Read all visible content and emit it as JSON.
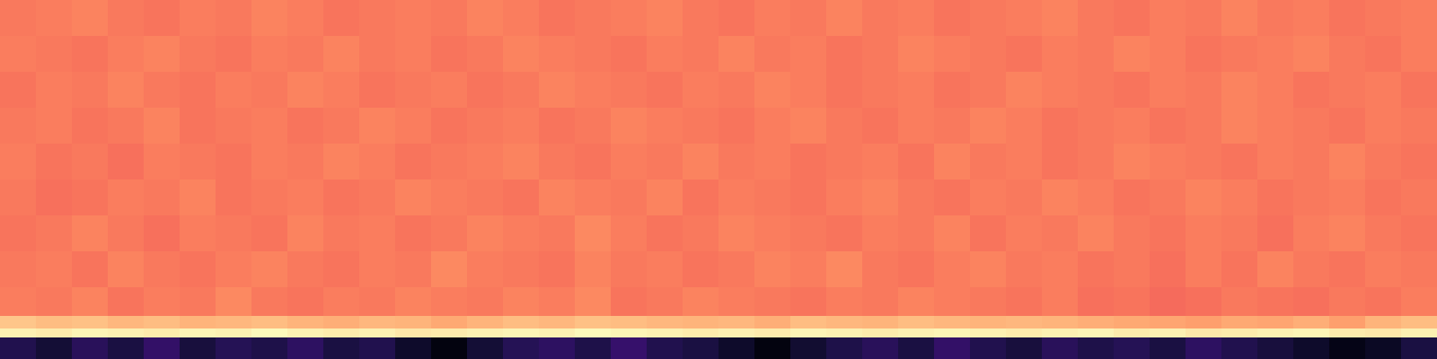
{
  "chart_data": {
    "type": "heatmap",
    "color": "magma",
    "tick_labels": false,
    "xlim": [
      0,
      40
    ],
    "ylim": [
      0,
      400
    ],
    "zlim": [
      0,
      1
    ],
    "x_edges": [
      0,
      1,
      2,
      3,
      4,
      5,
      6,
      7,
      8,
      9,
      10,
      11,
      12,
      13,
      14,
      15,
      16,
      17,
      18,
      19,
      20,
      21,
      22,
      23,
      24,
      25,
      26,
      27,
      28,
      29,
      30,
      31,
      32,
      33,
      34,
      35,
      36,
      37,
      38,
      39,
      40
    ],
    "y_edges": [
      0,
      24,
      34,
      48,
      80,
      120,
      160,
      200,
      240,
      280,
      320,
      360,
      400
    ],
    "z": [
      [
        0.14,
        0.1,
        0.16,
        0.12,
        0.18,
        0.11,
        0.15,
        0.13,
        0.17,
        0.12,
        0.14,
        0.08,
        0.03,
        0.1,
        0.15,
        0.17,
        0.13,
        0.19,
        0.14,
        0.12,
        0.08,
        0.03,
        0.09,
        0.13,
        0.16,
        0.12,
        0.18,
        0.14,
        0.11,
        0.16,
        0.13,
        0.15,
        0.12,
        0.17,
        0.14,
        0.11,
        0.08,
        0.04,
        0.07,
        0.12
      ],
      [
        0.97,
        0.96,
        0.98,
        0.97,
        0.96,
        0.98,
        0.97,
        0.99,
        0.97,
        0.96,
        0.97,
        0.95,
        0.96,
        0.97,
        0.98,
        0.97,
        0.99,
        0.98,
        0.97,
        0.96,
        0.97,
        0.96,
        0.98,
        0.97,
        0.96,
        0.97,
        0.98,
        0.97,
        0.96,
        0.97,
        0.98,
        0.96,
        0.97,
        0.95,
        0.96,
        0.97,
        0.98,
        0.96,
        0.95,
        0.97
      ],
      [
        0.88,
        0.86,
        0.87,
        0.85,
        0.86,
        0.84,
        0.85,
        0.86,
        0.84,
        0.83,
        0.85,
        0.84,
        0.82,
        0.84,
        0.86,
        0.85,
        0.87,
        0.86,
        0.85,
        0.84,
        0.85,
        0.83,
        0.86,
        0.85,
        0.84,
        0.86,
        0.85,
        0.84,
        0.85,
        0.84,
        0.83,
        0.82,
        0.81,
        0.8,
        0.82,
        0.81,
        0.83,
        0.8,
        0.84,
        0.86
      ],
      [
        0.73,
        0.72,
        0.74,
        0.71,
        0.73,
        0.72,
        0.75,
        0.72,
        0.71,
        0.73,
        0.72,
        0.74,
        0.73,
        0.72,
        0.74,
        0.73,
        0.75,
        0.71,
        0.72,
        0.74,
        0.73,
        0.72,
        0.71,
        0.73,
        0.72,
        0.74,
        0.73,
        0.72,
        0.71,
        0.73,
        0.7,
        0.71,
        0.69,
        0.7,
        0.72,
        0.71,
        0.7,
        0.72,
        0.71,
        0.73
      ],
      [
        0.72,
        0.73,
        0.71,
        0.74,
        0.72,
        0.71,
        0.73,
        0.74,
        0.72,
        0.71,
        0.73,
        0.72,
        0.75,
        0.73,
        0.72,
        0.71,
        0.74,
        0.72,
        0.73,
        0.71,
        0.72,
        0.74,
        0.73,
        0.75,
        0.72,
        0.71,
        0.73,
        0.74,
        0.72,
        0.73,
        0.71,
        0.72,
        0.7,
        0.73,
        0.71,
        0.74,
        0.72,
        0.71,
        0.73,
        0.72
      ],
      [
        0.71,
        0.72,
        0.74,
        0.72,
        0.7,
        0.73,
        0.72,
        0.71,
        0.74,
        0.72,
        0.73,
        0.71,
        0.72,
        0.74,
        0.73,
        0.72,
        0.75,
        0.73,
        0.71,
        0.72,
        0.74,
        0.73,
        0.72,
        0.71,
        0.73,
        0.72,
        0.74,
        0.71,
        0.73,
        0.72,
        0.74,
        0.72,
        0.71,
        0.73,
        0.72,
        0.7,
        0.73,
        0.74,
        0.72,
        0.71
      ],
      [
        0.72,
        0.7,
        0.71,
        0.73,
        0.72,
        0.74,
        0.71,
        0.72,
        0.73,
        0.71,
        0.72,
        0.74,
        0.73,
        0.72,
        0.71,
        0.74,
        0.73,
        0.72,
        0.74,
        0.71,
        0.73,
        0.72,
        0.71,
        0.73,
        0.74,
        0.72,
        0.71,
        0.73,
        0.72,
        0.74,
        0.73,
        0.71,
        0.72,
        0.74,
        0.73,
        0.71,
        0.72,
        0.73,
        0.71,
        0.72
      ],
      [
        0.73,
        0.71,
        0.72,
        0.7,
        0.73,
        0.72,
        0.71,
        0.73,
        0.72,
        0.74,
        0.73,
        0.71,
        0.72,
        0.73,
        0.74,
        0.72,
        0.71,
        0.73,
        0.72,
        0.74,
        0.72,
        0.73,
        0.71,
        0.72,
        0.73,
        0.71,
        0.74,
        0.72,
        0.73,
        0.71,
        0.72,
        0.74,
        0.73,
        0.72,
        0.71,
        0.73,
        0.72,
        0.74,
        0.72,
        0.71
      ],
      [
        0.72,
        0.73,
        0.71,
        0.72,
        0.74,
        0.71,
        0.72,
        0.73,
        0.71,
        0.72,
        0.74,
        0.73,
        0.71,
        0.72,
        0.73,
        0.71,
        0.72,
        0.74,
        0.73,
        0.72,
        0.71,
        0.73,
        0.74,
        0.72,
        0.71,
        0.73,
        0.72,
        0.74,
        0.73,
        0.71,
        0.72,
        0.73,
        0.71,
        0.72,
        0.74,
        0.73,
        0.72,
        0.71,
        0.73,
        0.72
      ],
      [
        0.71,
        0.73,
        0.72,
        0.74,
        0.72,
        0.71,
        0.73,
        0.72,
        0.74,
        0.73,
        0.71,
        0.72,
        0.73,
        0.71,
        0.72,
        0.74,
        0.73,
        0.72,
        0.71,
        0.73,
        0.72,
        0.74,
        0.73,
        0.71,
        0.72,
        0.73,
        0.71,
        0.72,
        0.74,
        0.73,
        0.72,
        0.71,
        0.73,
        0.72,
        0.74,
        0.73,
        0.71,
        0.72,
        0.73,
        0.71
      ],
      [
        0.73,
        0.72,
        0.71,
        0.73,
        0.74,
        0.72,
        0.71,
        0.73,
        0.72,
        0.74,
        0.72,
        0.73,
        0.71,
        0.72,
        0.74,
        0.73,
        0.72,
        0.71,
        0.73,
        0.72,
        0.74,
        0.72,
        0.73,
        0.71,
        0.72,
        0.74,
        0.73,
        0.72,
        0.71,
        0.73,
        0.72,
        0.74,
        0.73,
        0.71,
        0.72,
        0.73,
        0.74,
        0.72,
        0.71,
        0.73
      ],
      [
        0.72,
        0.73,
        0.74,
        0.72,
        0.71,
        0.73,
        0.72,
        0.74,
        0.73,
        0.71,
        0.72,
        0.73,
        0.72,
        0.74,
        0.73,
        0.71,
        0.72,
        0.73,
        0.74,
        0.72,
        0.71,
        0.73,
        0.72,
        0.74,
        0.72,
        0.73,
        0.71,
        0.72,
        0.73,
        0.74,
        0.72,
        0.71,
        0.73,
        0.72,
        0.74,
        0.72,
        0.73,
        0.71,
        0.72,
        0.73
      ]
    ]
  }
}
